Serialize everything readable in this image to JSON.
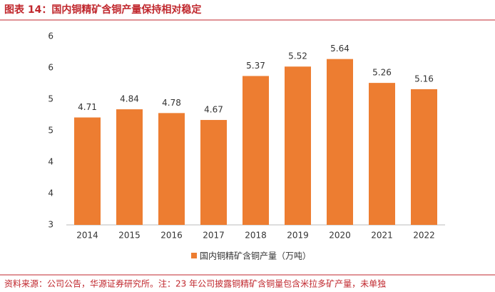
{
  "chart_data": {
    "type": "bar",
    "title": "图表 14：国内铜精矿含铜产量保持相对稳定",
    "categories": [
      "2014",
      "2015",
      "2016",
      "2017",
      "2018",
      "2019",
      "2020",
      "2021",
      "2022"
    ],
    "series": [
      {
        "name": "国内铜精矿含铜产量（万吨）",
        "color": "#ed7d31",
        "values": [
          4.71,
          4.84,
          4.78,
          4.67,
          5.37,
          5.52,
          5.64,
          5.26,
          5.16
        ]
      }
    ],
    "ylim": [
      3,
      6
    ],
    "yticks": [
      3,
      {
        "value": 3.5,
        "label": "4"
      },
      4,
      {
        "value": 4.5,
        "label": "5"
      },
      5,
      {
        "value": 5.5,
        "label": "6"
      },
      6
    ],
    "legend": "bottom",
    "source": "资料来源：公司公告，华源证券研究所。注：23 年公司披露铜精矿含铜量包含米拉多矿产量，未单独"
  }
}
